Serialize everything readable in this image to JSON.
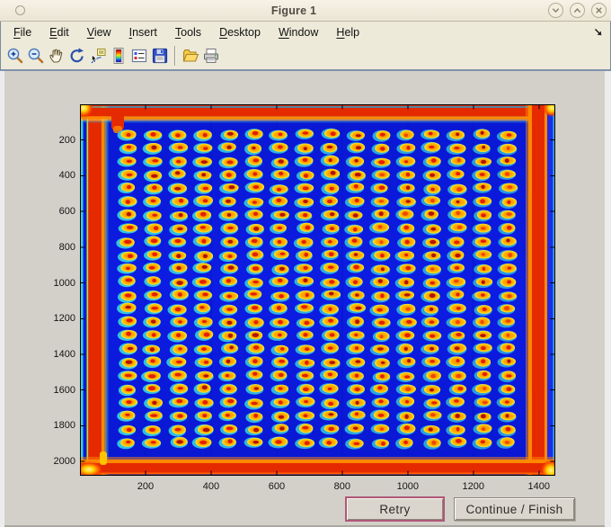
{
  "window": {
    "title": "Figure 1",
    "controls": [
      {
        "name": "shade-button",
        "glyph": "chevron-down"
      },
      {
        "name": "unshade-button",
        "glyph": "chevron-up"
      },
      {
        "name": "close-button",
        "glyph": "close"
      }
    ]
  },
  "menu": {
    "items": [
      {
        "label": "File",
        "underline": 0
      },
      {
        "label": "Edit",
        "underline": 0
      },
      {
        "label": "View",
        "underline": 0
      },
      {
        "label": "Insert",
        "underline": 0
      },
      {
        "label": "Tools",
        "underline": 0
      },
      {
        "label": "Desktop",
        "underline": 0
      },
      {
        "label": "Window",
        "underline": 0
      },
      {
        "label": "Help",
        "underline": 0
      }
    ],
    "dock_icon": "dock-figure-arrow"
  },
  "toolbar": {
    "items": [
      "zoom-in",
      "zoom-out",
      "pan",
      "rotate-3d",
      "data-cursor",
      "insert-colorbar",
      "insert-legend",
      "save-figure",
      "separator",
      "open-file",
      "print-figure"
    ]
  },
  "actions": {
    "retry_label": "Retry",
    "continue_label": "Continue / Finish"
  },
  "chart_data": {
    "type": "heatmap",
    "title": "",
    "xlabel": "",
    "ylabel": "",
    "colormap": "jet",
    "x_ticks": [
      200,
      400,
      600,
      800,
      1000,
      1200,
      1400
    ],
    "y_ticks": [
      200,
      400,
      600,
      800,
      1000,
      1200,
      1400,
      1600,
      1800,
      2000
    ],
    "x_range": [
      0,
      1450
    ],
    "y_range": [
      0,
      2080
    ],
    "grid": {
      "rows": 24,
      "cols": 16,
      "x_start": 148,
      "x_spacing": 77.3,
      "y_start": 168,
      "y_spacing": 75
    },
    "palette": {
      "background": "#0c1ce2",
      "band": "#e62a00",
      "band_orange": "#ff8800",
      "band_hot": "#ffd400",
      "spot_halo": "#35d2e2",
      "spot_body": "#ff9a00",
      "spot_ring": "#ffd200",
      "spot_center": "#e32000",
      "spot_center_dark": "#b21400"
    }
  }
}
